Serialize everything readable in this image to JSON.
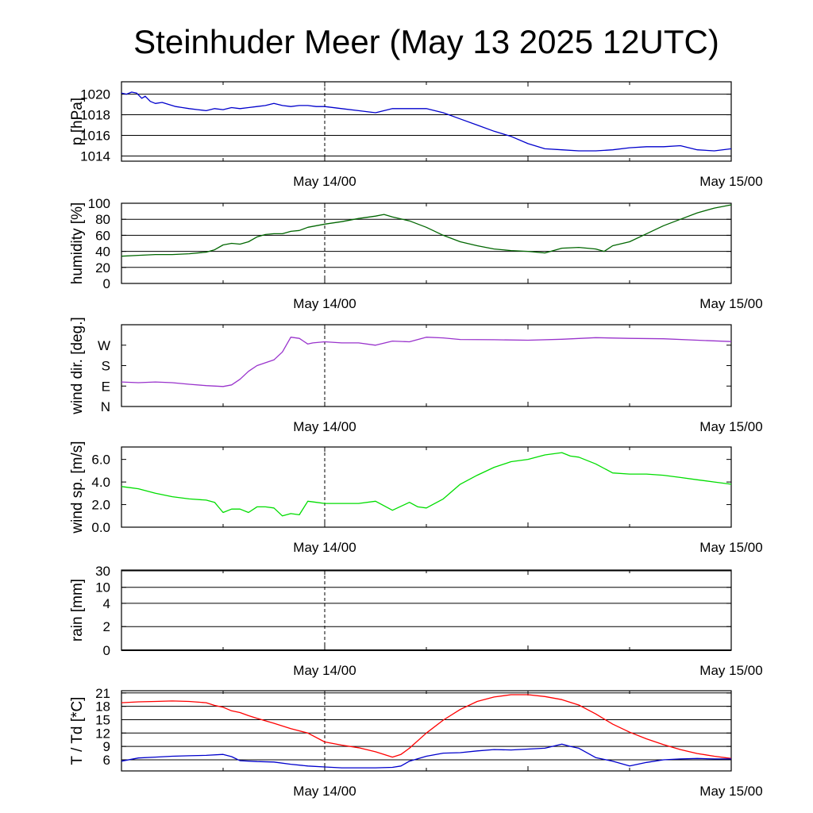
{
  "title": "Steinhuder Meer (May 13 2025 12UTC)",
  "x_tick_labels": [
    "May 14/00",
    "May 15/00"
  ],
  "chart_data": [
    {
      "id": "pressure",
      "type": "line",
      "ylabel": "p [hPa]",
      "ylim": [
        1013.5,
        1021.2
      ],
      "yticks": [
        1014,
        1016,
        1018,
        1020
      ],
      "ytick_labels": [
        "1014",
        "1016",
        "1018",
        "1020"
      ],
      "gridlines": [
        1014,
        1016,
        1018,
        1020
      ],
      "grid": true,
      "xlim": [
        0,
        36
      ],
      "color": "#0000cc",
      "series": [
        {
          "x": [
            0,
            0.3,
            0.6,
            0.9,
            1.2,
            1.4,
            1.7,
            2.0,
            2.4,
            2.8,
            3.2,
            3.6,
            4.0,
            4.5,
            5,
            5.5,
            6,
            6.5,
            7,
            7.5,
            8,
            8.5,
            9,
            9.5,
            10,
            10.5,
            11,
            11.5,
            12,
            13,
            14,
            15,
            16,
            17,
            18,
            19,
            20,
            21,
            22,
            23,
            24,
            25,
            26,
            27,
            28,
            29,
            30,
            31,
            32,
            33,
            34,
            35,
            36
          ],
          "y": [
            1020.1,
            1020.0,
            1020.2,
            1020.1,
            1019.6,
            1019.8,
            1019.3,
            1019.1,
            1019.2,
            1019.0,
            1018.8,
            1018.7,
            1018.6,
            1018.5,
            1018.4,
            1018.6,
            1018.5,
            1018.7,
            1018.6,
            1018.7,
            1018.8,
            1018.9,
            1019.1,
            1018.9,
            1018.8,
            1018.9,
            1018.9,
            1018.8,
            1018.8,
            1018.6,
            1018.4,
            1018.2,
            1018.6,
            1018.6,
            1018.6,
            1018.2,
            1017.6,
            1017.0,
            1016.4,
            1015.9,
            1015.2,
            1014.7,
            1014.6,
            1014.5,
            1014.5,
            1014.6,
            1014.8,
            1014.9,
            1014.9,
            1015.0,
            1014.6,
            1014.5,
            1014.7
          ]
        }
      ]
    },
    {
      "id": "humidity",
      "type": "line",
      "ylabel": "humidity [%]",
      "ylim": [
        0,
        100
      ],
      "yticks": [
        0,
        20,
        40,
        60,
        80,
        100
      ],
      "ytick_labels": [
        "0",
        "20",
        "40",
        "60",
        "80",
        "100"
      ],
      "gridlines": [
        20,
        40,
        60,
        80,
        100
      ],
      "grid": true,
      "xlim": [
        0,
        36
      ],
      "color": "#006600",
      "series": [
        {
          "x": [
            0,
            1,
            2,
            3,
            4,
            5,
            5.5,
            6,
            6.5,
            7,
            7.5,
            8,
            8.5,
            9,
            9.5,
            10,
            10.5,
            11,
            12,
            13,
            14,
            15,
            15.5,
            16,
            17,
            18,
            19,
            20,
            21,
            22,
            23,
            24,
            25,
            26,
            27,
            28,
            28.5,
            29,
            30,
            31,
            32,
            33,
            34,
            35,
            36
          ],
          "y": [
            34,
            35,
            36,
            36,
            37,
            39,
            42,
            48,
            50,
            49,
            52,
            58,
            61,
            62,
            62,
            65,
            66,
            70,
            74,
            77,
            81,
            84,
            86,
            83,
            78,
            70,
            60,
            52,
            47,
            43,
            41,
            40,
            38,
            44,
            45,
            43,
            40,
            47,
            52,
            62,
            72,
            80,
            88,
            94,
            98
          ]
        }
      ]
    },
    {
      "id": "wind_direction",
      "type": "line",
      "ylabel": "wind dir. [deg.]",
      "ylim": [
        0,
        360
      ],
      "yticks": [
        0,
        90,
        180,
        270
      ],
      "ytick_labels": [
        "N",
        "E",
        "S",
        "W"
      ],
      "gridlines": [],
      "grid": false,
      "xlim": [
        0,
        36
      ],
      "color": "#9933cc",
      "series": [
        {
          "x": [
            0,
            1,
            2,
            3,
            4,
            5,
            6,
            6.5,
            7,
            7.5,
            8,
            9,
            9.5,
            10,
            10.5,
            11,
            11.3,
            12,
            13,
            14,
            15,
            16,
            17,
            18,
            19,
            20,
            22,
            24,
            26,
            28,
            30,
            32,
            34,
            36
          ],
          "y": [
            108,
            105,
            108,
            105,
            98,
            92,
            88,
            95,
            120,
            155,
            180,
            205,
            240,
            305,
            300,
            275,
            280,
            285,
            280,
            280,
            270,
            288,
            285,
            305,
            302,
            295,
            294,
            292,
            296,
            303,
            300,
            298,
            292,
            286
          ]
        }
      ]
    },
    {
      "id": "wind_speed",
      "type": "line",
      "ylabel": "wind sp. [m/s]",
      "ylim": [
        0,
        7.1
      ],
      "yticks": [
        0,
        2,
        4,
        6
      ],
      "ytick_labels": [
        "0.0",
        "2.0",
        "4.0",
        "6.0"
      ],
      "gridlines": [],
      "grid": false,
      "xlim": [
        0,
        36
      ],
      "color": "#00dd00",
      "series": [
        {
          "x": [
            0,
            0.5,
            1,
            2,
            3,
            4,
            5,
            5.5,
            6,
            6.5,
            7,
            7.5,
            8,
            8.5,
            9,
            9.5,
            10,
            10.5,
            11,
            11.5,
            12,
            13,
            14,
            15,
            16,
            17,
            17.5,
            18,
            19,
            20,
            21,
            22,
            23,
            24,
            25,
            26,
            26.5,
            27,
            28,
            29,
            30,
            31,
            32,
            33,
            34,
            35,
            36
          ],
          "y": [
            3.6,
            3.5,
            3.4,
            3.0,
            2.7,
            2.5,
            2.4,
            2.2,
            1.3,
            1.6,
            1.6,
            1.3,
            1.8,
            1.8,
            1.7,
            1.0,
            1.2,
            1.1,
            2.3,
            2.2,
            2.1,
            2.1,
            2.1,
            2.3,
            1.5,
            2.2,
            1.8,
            1.7,
            2.5,
            3.8,
            4.6,
            5.3,
            5.8,
            6.0,
            6.4,
            6.6,
            6.3,
            6.2,
            5.6,
            4.8,
            4.7,
            4.7,
            4.6,
            4.4,
            4.2,
            4.0,
            3.8
          ]
        }
      ]
    },
    {
      "id": "rain",
      "type": "line",
      "ylabel": "rain [mm]",
      "ylim": [
        0,
        30
      ],
      "yticks": [
        0,
        2,
        4,
        10,
        30
      ],
      "ytick_labels": [
        "0",
        "2",
        "4",
        "10",
        "30"
      ],
      "gridlines": [
        2,
        4,
        10,
        30
      ],
      "scale": "nonlinear",
      "grid": true,
      "xlim": [
        0,
        36
      ],
      "color": "#000000",
      "series": [
        {
          "x": [
            0,
            36
          ],
          "y": [
            0,
            0
          ]
        }
      ]
    },
    {
      "id": "temperature",
      "type": "line",
      "ylabel": "T / Td [*C]",
      "ylim": [
        3.5,
        21.5
      ],
      "yticks": [
        6,
        9,
        12,
        15,
        18,
        21
      ],
      "ytick_labels": [
        "6",
        "9",
        "12",
        "15",
        "18",
        "21"
      ],
      "gridlines": [
        6,
        9,
        12,
        15,
        18,
        21
      ],
      "grid": true,
      "xlim": [
        0,
        36
      ],
      "series": [
        {
          "color": "#ff0000",
          "x": [
            0,
            1,
            2,
            3,
            4,
            5,
            5.5,
            6,
            6.5,
            7,
            7.5,
            8,
            9,
            10,
            11,
            12,
            13,
            14,
            15,
            16,
            16.5,
            17,
            18,
            19,
            20,
            21,
            22,
            23,
            24,
            25,
            26,
            27,
            28,
            29,
            30,
            31,
            32,
            33,
            34,
            35,
            36
          ],
          "y": [
            18.8,
            19.0,
            19.1,
            19.2,
            19.1,
            18.8,
            18.2,
            17.8,
            17.0,
            16.6,
            15.9,
            15.3,
            14.2,
            13.0,
            12.0,
            10.0,
            9.3,
            8.7,
            7.8,
            6.6,
            7.2,
            8.6,
            12.0,
            14.9,
            17.3,
            19.1,
            20.1,
            20.6,
            20.6,
            20.2,
            19.5,
            18.3,
            16.3,
            14.0,
            12.2,
            10.7,
            9.4,
            8.3,
            7.4,
            6.8,
            6.3
          ]
        },
        {
          "color": "#0000cc",
          "x": [
            0,
            1,
            2,
            3,
            4,
            5,
            6,
            6.5,
            7,
            8,
            9,
            10,
            11,
            12,
            13,
            14,
            15,
            16,
            16.5,
            17,
            18,
            19,
            20,
            21,
            22,
            23,
            24,
            25,
            26,
            26.5,
            27,
            28,
            29,
            30,
            31,
            32,
            33,
            34,
            35,
            36
          ],
          "y": [
            5.7,
            6.4,
            6.6,
            6.8,
            6.9,
            7.0,
            7.2,
            6.7,
            5.8,
            5.6,
            5.5,
            5.0,
            4.6,
            4.4,
            4.2,
            4.2,
            4.2,
            4.3,
            4.6,
            5.7,
            6.8,
            7.5,
            7.6,
            8.0,
            8.3,
            8.2,
            8.4,
            8.6,
            9.5,
            9.0,
            8.6,
            6.5,
            5.7,
            4.6,
            5.4,
            6.0,
            6.2,
            6.3,
            6.2,
            6.2
          ]
        }
      ]
    }
  ]
}
